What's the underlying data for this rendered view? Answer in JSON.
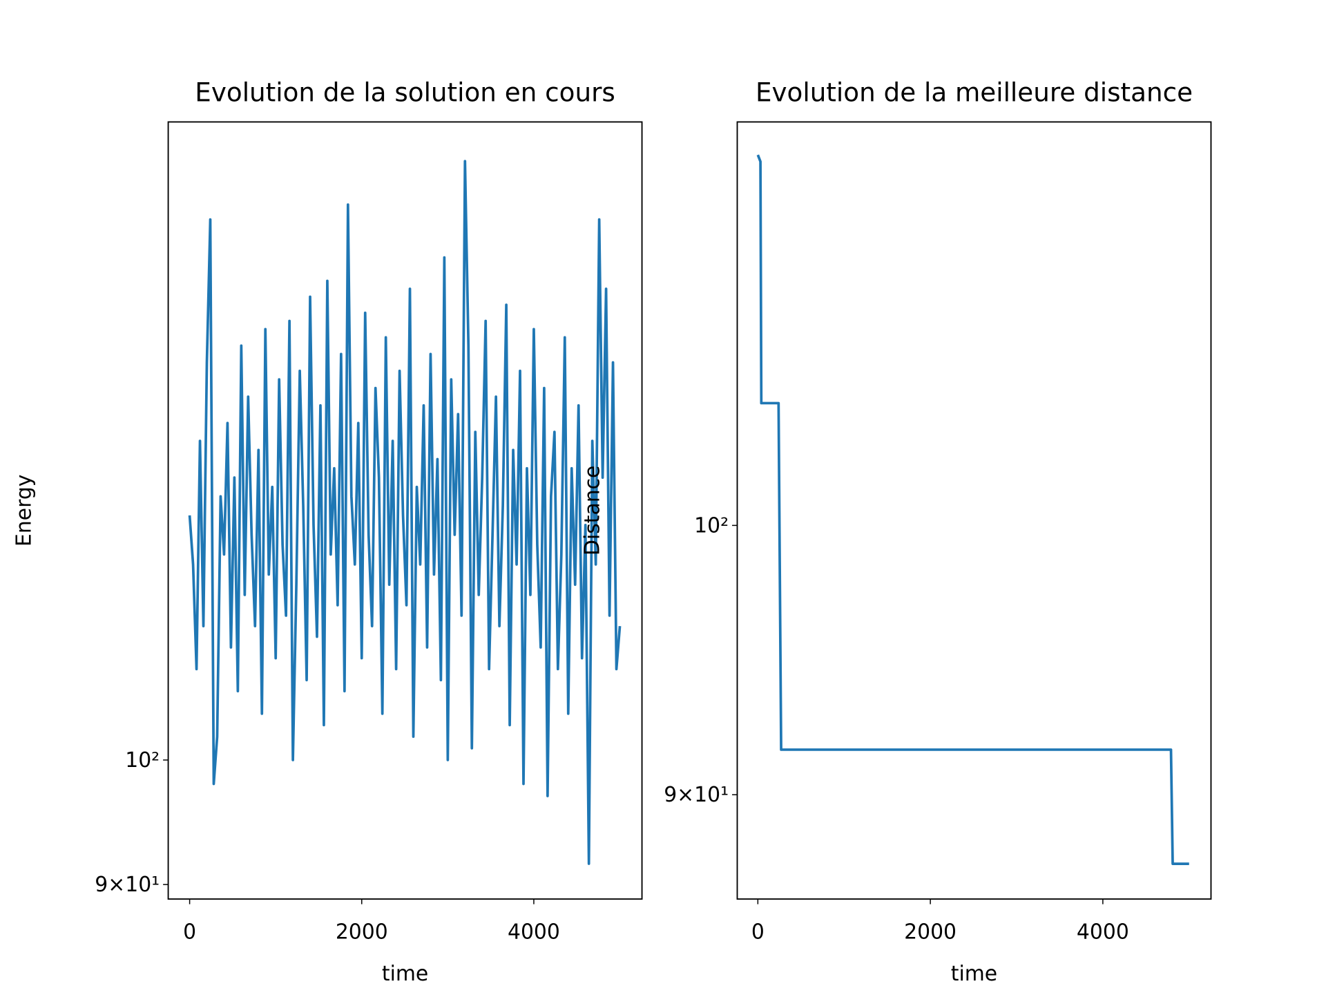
{
  "chart_data": [
    {
      "type": "line",
      "title": "Evolution de la solution en cours",
      "xlabel": "time",
      "ylabel": "Energy",
      "log_y": true,
      "xlim": [
        -249,
        5257
      ],
      "xticks": [
        0,
        2000,
        4000
      ],
      "ylim": [
        88.9,
        171.6
      ],
      "yticks": [
        {
          "value": 90,
          "label": "9×10¹"
        },
        {
          "value": 100,
          "label": "10²"
        }
      ],
      "x": [
        0,
        40,
        80,
        120,
        160,
        200,
        240,
        280,
        320,
        360,
        400,
        440,
        480,
        520,
        560,
        600,
        640,
        680,
        720,
        760,
        800,
        840,
        880,
        920,
        960,
        1000,
        1040,
        1080,
        1120,
        1160,
        1200,
        1240,
        1280,
        1320,
        1360,
        1400,
        1440,
        1480,
        1520,
        1560,
        1600,
        1640,
        1680,
        1720,
        1760,
        1800,
        1840,
        1880,
        1920,
        1960,
        2000,
        2040,
        2080,
        2120,
        2160,
        2200,
        2240,
        2280,
        2320,
        2360,
        2400,
        2440,
        2480,
        2520,
        2560,
        2600,
        2640,
        2680,
        2720,
        2760,
        2800,
        2840,
        2880,
        2920,
        2960,
        3000,
        3040,
        3080,
        3120,
        3160,
        3200,
        3240,
        3280,
        3320,
        3360,
        3400,
        3440,
        3480,
        3520,
        3560,
        3600,
        3640,
        3680,
        3720,
        3760,
        3800,
        3840,
        3880,
        3920,
        3960,
        4000,
        4040,
        4080,
        4120,
        4160,
        4200,
        4240,
        4280,
        4320,
        4360,
        4400,
        4440,
        4480,
        4520,
        4560,
        4600,
        4640,
        4680,
        4720,
        4760,
        4800,
        4840,
        4880,
        4920,
        4960,
        5000
      ],
      "series": [
        {
          "name": "Energy",
          "color": "#1f77b4",
          "values": [
            123,
            118,
            108,
            131,
            112,
            140,
            158,
            98,
            102,
            125,
            119,
            133,
            110,
            127,
            106,
            142,
            115,
            136,
            121,
            112,
            130,
            104,
            144,
            117,
            126,
            109,
            138,
            120,
            113,
            145,
            100,
            116,
            139,
            124,
            107,
            148,
            122,
            111,
            135,
            103,
            150,
            119,
            128,
            114,
            141,
            106,
            160,
            125,
            118,
            133,
            109,
            146,
            121,
            112,
            137,
            127,
            104,
            143,
            116,
            131,
            108,
            139,
            123,
            114,
            149,
            102,
            126,
            118,
            135,
            110,
            141,
            117,
            129,
            107,
            153,
            100,
            138,
            121,
            134,
            113,
            166,
            142,
            101,
            132,
            115,
            127,
            145,
            108,
            121,
            136,
            112,
            124,
            147,
            103,
            130,
            118,
            139,
            98,
            128,
            115,
            144,
            120,
            110,
            137,
            97,
            125,
            132,
            108,
            119,
            143,
            104,
            128,
            116,
            135,
            109,
            122,
            91.6,
            131,
            118,
            158,
            127,
            149,
            113,
            140,
            108,
            112
          ]
        }
      ]
    },
    {
      "type": "line",
      "title": "Evolution de la meilleure distance",
      "xlabel": "time",
      "ylabel": "Distance",
      "log_y": true,
      "xlim": [
        -239,
        5254
      ],
      "xticks": [
        0,
        2000,
        4000
      ],
      "ylim": [
        86.4,
        117.1
      ],
      "yticks": [
        {
          "value": 90,
          "label": "9×10¹"
        },
        {
          "value": 100,
          "label": "10²"
        }
      ],
      "x": [
        0,
        30,
        40,
        240,
        270,
        4790,
        4810,
        5000
      ],
      "series": [
        {
          "name": "Distance",
          "color": "#1f77b4",
          "values": [
            115.6,
            115.3,
            104.9,
            104.9,
            91.6,
            91.6,
            87.6,
            87.6
          ]
        }
      ]
    }
  ]
}
